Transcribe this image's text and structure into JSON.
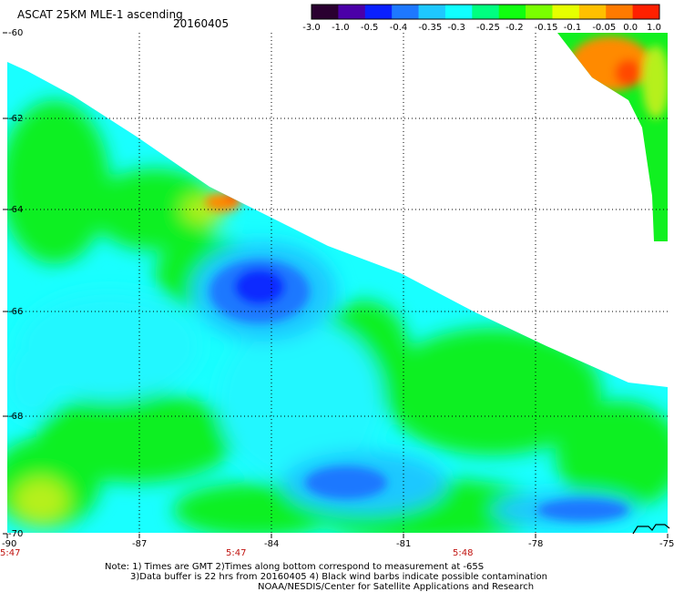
{
  "header": {
    "title": "ASCAT 25KM MLE-1 ascending",
    "date": "20160405"
  },
  "colorbar": {
    "tick_labels": [
      "-3.0",
      "-1.0",
      "-0.5",
      "-0.4",
      "-0.35",
      "-0.3",
      "-0.25",
      "-0.2",
      "-0.15",
      "-0.1",
      "-0.05",
      "0.0",
      "1.0"
    ],
    "colors": [
      "#2a0030",
      "#4b00a8",
      "#0a20ff",
      "#1e78ff",
      "#1ec8ff",
      "#10ffff",
      "#00ff80",
      "#10ff10",
      "#7aff00",
      "#e6ff00",
      "#ffc000",
      "#ff7a00",
      "#ff2000"
    ]
  },
  "map": {
    "lat_labels": [
      "-60",
      "-62",
      "-64",
      "-66",
      "-68",
      "-70"
    ],
    "lon_labels": [
      "-90",
      "-87",
      "-84",
      "-81",
      "-78",
      "-75"
    ],
    "times": [
      "5:47",
      "5:47",
      "5:48"
    ],
    "colors": {
      "ocean_base": "#19ffff",
      "cyan": "#00ffff",
      "light_cyan": "#22f7ff",
      "sky": "#1ec8ff",
      "green": "#10f020",
      "yellow_green": "#b6f01e",
      "blue": "#1e78ff",
      "dark_blue": "#0a2aff",
      "orange": "#ff8a00",
      "red_orange": "#ff4a00",
      "ice": "#ffffff"
    }
  },
  "footer": {
    "note_line1": "Note: 1) Times are GMT 2)Times along bottom correspond to measurement at -65S",
    "note_line2": "3)Data buffer is 22 hrs from 20160405 4) Black wind barbs indicate possible contamination",
    "credit": "NOAA/NESDIS/Center for Satellite Applications and Research"
  }
}
